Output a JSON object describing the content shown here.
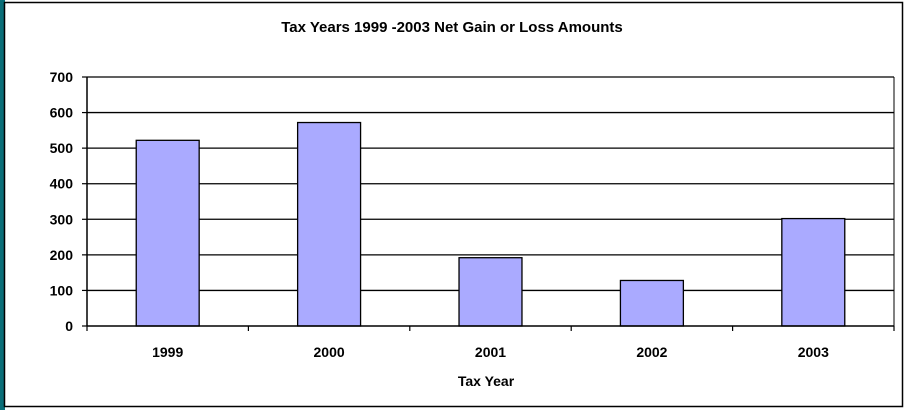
{
  "chart_data": {
    "type": "bar",
    "title": "Tax Years 1999  -2003 Net Gain or Loss Amounts",
    "xlabel": "Tax Year",
    "ylabel": "",
    "categories": [
      "1999",
      "2000",
      "2001",
      "2002",
      "2003"
    ],
    "values": [
      522,
      572,
      192,
      128,
      302
    ],
    "ylim": [
      0,
      700
    ],
    "yticks": [
      0,
      100,
      200,
      300,
      400,
      500,
      600,
      700
    ],
    "grid": true,
    "legend": "none",
    "colors": {
      "bar_fill": "#aaaaff",
      "bar_stroke": "#000000",
      "gridline": "#000000",
      "left_accent": "#0a6e78"
    }
  }
}
